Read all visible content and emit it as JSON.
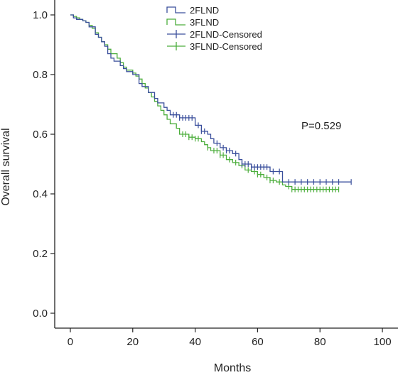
{
  "chart_data": {
    "type": "line",
    "title": "",
    "xlabel": "Months",
    "ylabel": "Overall survival",
    "xlim": [
      -5,
      105
    ],
    "ylim": [
      -0.05,
      1.05
    ],
    "x_ticks": [
      0,
      20,
      40,
      60,
      80,
      100
    ],
    "y_ticks": [
      0.0,
      0.2,
      0.4,
      0.6,
      0.8,
      1.0
    ],
    "x_tick_labels": [
      "0",
      "20",
      "40",
      "60",
      "80",
      "100"
    ],
    "y_tick_labels": [
      "0.0",
      "0.2",
      "0.4",
      "0.6",
      "0.8",
      "1.0"
    ],
    "grid": false,
    "legend_position": "top-center",
    "annotation": "P=0.529",
    "colors": {
      "2FLND": "#3a4f9c",
      "3FLND": "#4cae3c"
    },
    "legend": [
      {
        "label": "2FLND",
        "series": "2FLND",
        "kind": "line"
      },
      {
        "label": "3FLND",
        "series": "3FLND",
        "kind": "line"
      },
      {
        "label": "2FLND-Censored",
        "series": "2FLND",
        "kind": "censor"
      },
      {
        "label": "3FLND-Censored",
        "series": "3FLND",
        "kind": "censor"
      }
    ],
    "series": [
      {
        "name": "2FLND",
        "step_x": [
          0,
          1,
          2,
          4,
          5,
          6,
          8,
          9,
          10,
          11,
          12,
          13,
          14,
          16,
          17,
          18,
          20,
          22,
          23,
          25,
          27,
          28,
          30,
          31,
          32,
          35,
          40,
          42,
          44,
          45,
          46,
          48,
          50,
          52,
          54,
          55,
          58,
          64,
          68,
          90
        ],
        "step_y": [
          1.0,
          0.99,
          0.985,
          0.98,
          0.975,
          0.96,
          0.935,
          0.925,
          0.91,
          0.895,
          0.87,
          0.855,
          0.845,
          0.83,
          0.82,
          0.81,
          0.8,
          0.77,
          0.76,
          0.74,
          0.72,
          0.705,
          0.69,
          0.68,
          0.665,
          0.655,
          0.63,
          0.61,
          0.6,
          0.585,
          0.57,
          0.555,
          0.545,
          0.535,
          0.515,
          0.5,
          0.49,
          0.475,
          0.44,
          0.44
        ],
        "censored_x": [
          33,
          34,
          35,
          36,
          37,
          38,
          39,
          41,
          42,
          43,
          47,
          49,
          50,
          51,
          53,
          55,
          56,
          57,
          58,
          59,
          60,
          61,
          62,
          63,
          65,
          67,
          70,
          72,
          74,
          76,
          78,
          80,
          82,
          84,
          86,
          90
        ]
      },
      {
        "name": "3FLND",
        "step_x": [
          0,
          1,
          2,
          3,
          4,
          5,
          6,
          7,
          8,
          9,
          10,
          11,
          12,
          13,
          15,
          16,
          17,
          18,
          20,
          21,
          22,
          23,
          24,
          25,
          26,
          27,
          28,
          29,
          30,
          31,
          32,
          34,
          35,
          38,
          40,
          42,
          43,
          44,
          45,
          48,
          50,
          52,
          54,
          56,
          58,
          60,
          62,
          64,
          66,
          68,
          69,
          71,
          86
        ],
        "step_y": [
          1.0,
          0.995,
          0.99,
          0.985,
          0.98,
          0.975,
          0.965,
          0.955,
          0.94,
          0.925,
          0.91,
          0.9,
          0.885,
          0.87,
          0.855,
          0.84,
          0.825,
          0.815,
          0.805,
          0.795,
          0.785,
          0.77,
          0.755,
          0.74,
          0.725,
          0.71,
          0.695,
          0.68,
          0.665,
          0.65,
          0.635,
          0.62,
          0.6,
          0.59,
          0.585,
          0.575,
          0.565,
          0.555,
          0.545,
          0.53,
          0.515,
          0.505,
          0.495,
          0.48,
          0.475,
          0.465,
          0.455,
          0.445,
          0.44,
          0.43,
          0.425,
          0.415,
          0.415
        ],
        "censored_x": [
          36,
          37,
          38,
          39,
          40,
          41,
          44,
          46,
          47,
          48,
          49,
          51,
          53,
          55,
          57,
          59,
          60,
          61,
          63,
          64,
          65,
          67,
          70,
          71,
          72,
          73,
          74,
          75,
          76,
          77,
          78,
          79,
          80,
          81,
          82,
          83,
          84,
          85,
          86
        ]
      }
    ]
  }
}
